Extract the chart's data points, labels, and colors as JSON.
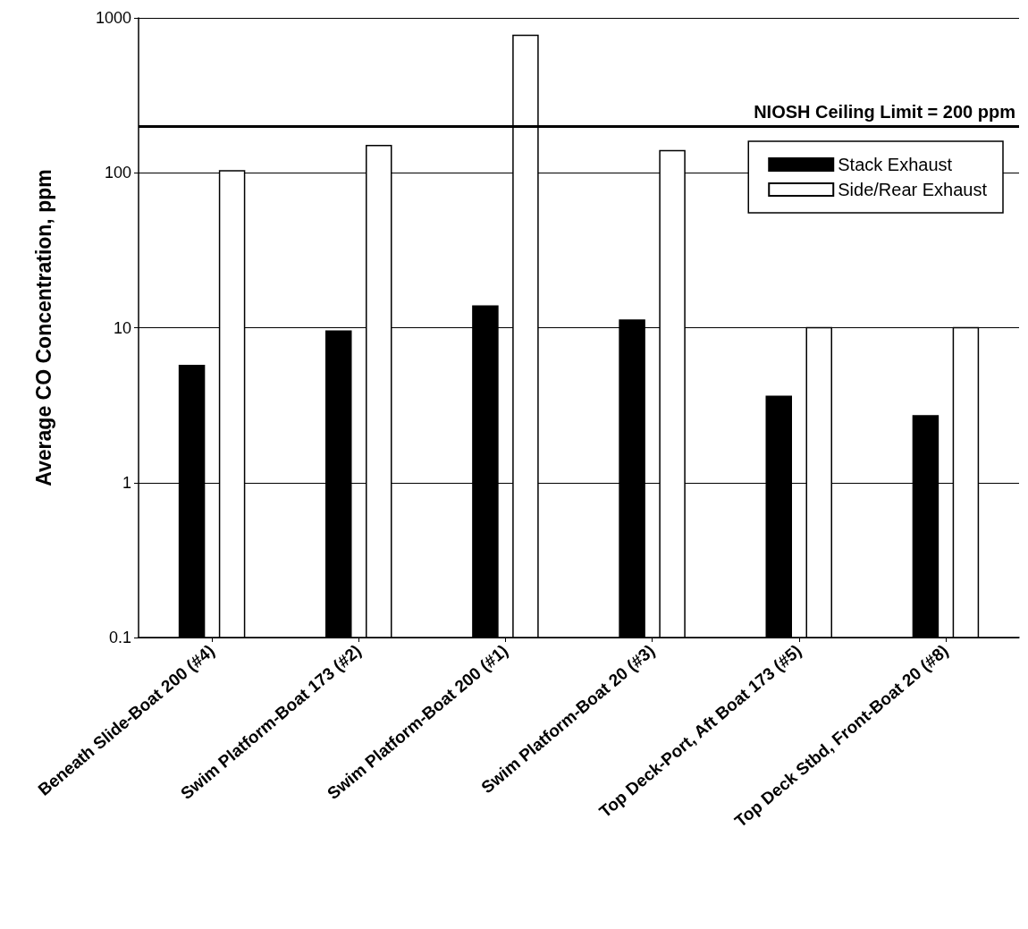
{
  "chart_data": {
    "type": "bar",
    "ylabel": "Average CO Concentration, ppm",
    "categories": [
      "Beneath Slide-Boat 200 (#4)",
      "Swim Platform-Boat 173 (#2)",
      "Swim Platform-Boat 200 (#1)",
      "Swim Platform-Boat 20 (#3)",
      "Top Deck-Port, Aft Boat 173 (#5)",
      "Top Deck Stbd, Front-Boat 20 (#8)"
    ],
    "series": [
      {
        "name": "Stack Exhaust",
        "color": "#000000",
        "values": [
          5.7,
          9.5,
          13.8,
          11.2,
          3.6,
          2.7
        ]
      },
      {
        "name": "Side/Rear Exhaust",
        "color": "#ffffff",
        "values": [
          103,
          150,
          772,
          139,
          10,
          10
        ]
      }
    ],
    "log": true,
    "ylim": [
      0.1,
      1000
    ],
    "yticks": [
      0.1,
      1,
      10,
      100,
      1000
    ],
    "grid": "y",
    "legend": "top right",
    "ref_lines": [
      {
        "axis": "y",
        "value": 200,
        "label": "NIOSH Ceiling Limit = 200 ppm",
        "color": "#000000"
      }
    ]
  }
}
